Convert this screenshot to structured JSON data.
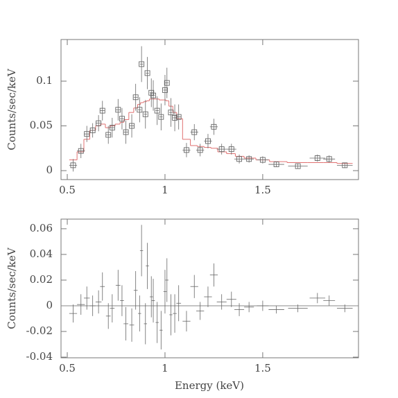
{
  "chart_data": [
    {
      "type": "spectrum",
      "ylabel": "Counts/sec/keV",
      "xlim": [
        0.468,
        1.99
      ],
      "xticks": [
        0.5,
        1,
        1.5
      ],
      "ylim": [
        -0.01,
        0.1465
      ],
      "yticks": [
        0,
        0.05,
        0.1
      ],
      "color": "#666666",
      "model_color": "#e07070",
      "x": [
        0.53,
        0.57,
        0.6,
        0.63,
        0.66,
        0.68,
        0.71,
        0.73,
        0.76,
        0.78,
        0.8,
        0.83,
        0.85,
        0.87,
        0.88,
        0.9,
        0.91,
        0.93,
        0.94,
        0.96,
        0.98,
        1.0,
        1.01,
        1.03,
        1.05,
        1.07,
        1.11,
        1.15,
        1.18,
        1.22,
        1.25,
        1.29,
        1.34,
        1.38,
        1.43,
        1.5,
        1.57,
        1.68,
        1.78,
        1.84,
        1.92
      ],
      "xerr": [
        0.02,
        0.02,
        0.015,
        0.015,
        0.015,
        0.012,
        0.012,
        0.012,
        0.012,
        0.01,
        0.012,
        0.012,
        0.01,
        0.008,
        0.008,
        0.008,
        0.008,
        0.008,
        0.008,
        0.008,
        0.008,
        0.008,
        0.008,
        0.008,
        0.01,
        0.012,
        0.02,
        0.02,
        0.02,
        0.02,
        0.02,
        0.025,
        0.025,
        0.025,
        0.025,
        0.03,
        0.04,
        0.05,
        0.04,
        0.03,
        0.04
      ],
      "values": [
        0.006,
        0.022,
        0.041,
        0.045,
        0.053,
        0.067,
        0.04,
        0.048,
        0.068,
        0.058,
        0.043,
        0.05,
        0.082,
        0.068,
        0.119,
        0.063,
        0.109,
        0.087,
        0.084,
        0.067,
        0.06,
        0.09,
        0.098,
        0.065,
        0.059,
        0.06,
        0.023,
        0.043,
        0.023,
        0.033,
        0.049,
        0.024,
        0.024,
        0.013,
        0.013,
        0.012,
        0.007,
        0.005,
        0.014,
        0.013,
        0.006
      ],
      "yerr": [
        0.007,
        0.008,
        0.009,
        0.008,
        0.009,
        0.011,
        0.01,
        0.011,
        0.012,
        0.012,
        0.013,
        0.013,
        0.015,
        0.014,
        0.02,
        0.016,
        0.018,
        0.016,
        0.017,
        0.016,
        0.015,
        0.017,
        0.017,
        0.016,
        0.015,
        0.014,
        0.008,
        0.009,
        0.007,
        0.008,
        0.009,
        0.006,
        0.006,
        0.005,
        0.004,
        0.004,
        0.003,
        0.003,
        0.004,
        0.004,
        0.003
      ],
      "model": [
        0.012,
        0.021,
        0.035,
        0.045,
        0.05,
        0.052,
        0.048,
        0.05,
        0.052,
        0.054,
        0.057,
        0.065,
        0.07,
        0.074,
        0.076,
        0.077,
        0.078,
        0.08,
        0.08,
        0.08,
        0.079,
        0.079,
        0.078,
        0.072,
        0.065,
        0.058,
        0.035,
        0.028,
        0.027,
        0.026,
        0.025,
        0.021,
        0.019,
        0.016,
        0.014,
        0.012,
        0.01,
        0.009,
        0.009,
        0.009,
        0.008
      ]
    },
    {
      "type": "residuals",
      "ylabel": "Counts/sec/keV",
      "xlabel": "Energy (keV)",
      "xlim": [
        0.468,
        1.99
      ],
      "xticks": [
        0.5,
        1,
        1.5
      ],
      "ylim": [
        -0.0405,
        0.0675
      ],
      "yticks": [
        -0.04,
        -0.02,
        0,
        0.02,
        0.04,
        0.06
      ],
      "color": "#666666",
      "x": [
        0.53,
        0.57,
        0.6,
        0.63,
        0.66,
        0.68,
        0.71,
        0.73,
        0.76,
        0.78,
        0.8,
        0.83,
        0.85,
        0.87,
        0.88,
        0.9,
        0.91,
        0.93,
        0.94,
        0.96,
        0.98,
        1.0,
        1.01,
        1.03,
        1.05,
        1.07,
        1.11,
        1.15,
        1.18,
        1.22,
        1.25,
        1.29,
        1.34,
        1.38,
        1.43,
        1.5,
        1.57,
        1.68,
        1.78,
        1.84,
        1.92
      ],
      "xerr": [
        0.02,
        0.02,
        0.015,
        0.015,
        0.015,
        0.012,
        0.012,
        0.012,
        0.012,
        0.01,
        0.012,
        0.012,
        0.01,
        0.008,
        0.008,
        0.008,
        0.008,
        0.008,
        0.008,
        0.008,
        0.008,
        0.008,
        0.008,
        0.008,
        0.01,
        0.012,
        0.02,
        0.02,
        0.02,
        0.02,
        0.02,
        0.025,
        0.025,
        0.025,
        0.025,
        0.03,
        0.04,
        0.05,
        0.04,
        0.03,
        0.04
      ],
      "values": [
        -0.006,
        0.001,
        0.006,
        0.0,
        0.003,
        0.015,
        -0.008,
        -0.002,
        0.016,
        0.004,
        -0.014,
        -0.015,
        0.012,
        -0.006,
        0.043,
        -0.014,
        0.031,
        0.007,
        0.004,
        -0.013,
        -0.019,
        0.011,
        0.02,
        -0.007,
        -0.006,
        0.002,
        -0.012,
        0.015,
        -0.004,
        0.007,
        0.024,
        0.003,
        0.005,
        -0.003,
        -0.001,
        0.0,
        -0.003,
        -0.002,
        0.006,
        0.004,
        -0.002
      ],
      "yerr": [
        0.007,
        0.008,
        0.009,
        0.008,
        0.009,
        0.011,
        0.01,
        0.011,
        0.012,
        0.012,
        0.013,
        0.013,
        0.015,
        0.014,
        0.02,
        0.016,
        0.018,
        0.016,
        0.017,
        0.016,
        0.015,
        0.017,
        0.017,
        0.016,
        0.015,
        0.014,
        0.008,
        0.009,
        0.007,
        0.008,
        0.009,
        0.006,
        0.006,
        0.005,
        0.004,
        0.004,
        0.003,
        0.003,
        0.004,
        0.004,
        0.003
      ]
    }
  ]
}
